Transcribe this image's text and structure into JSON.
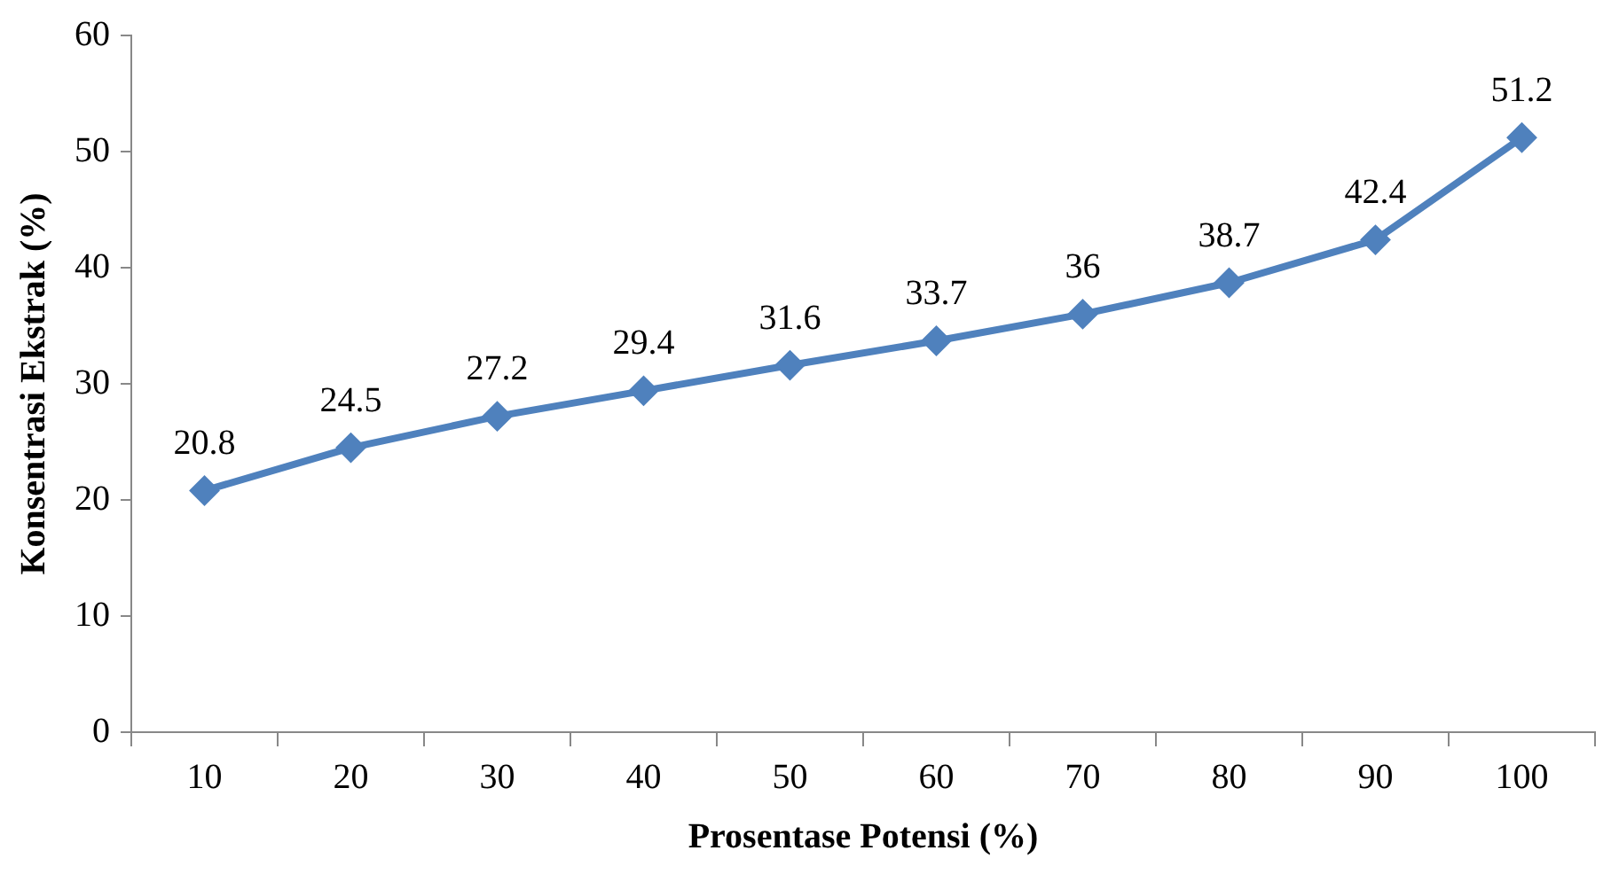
{
  "chart_data": {
    "type": "line",
    "xlabel": "Prosentase Potensi (%)",
    "ylabel": "Konsentrasi Ekstrak (%)",
    "categories": [
      "10",
      "20",
      "30",
      "40",
      "50",
      "60",
      "70",
      "80",
      "90",
      "100"
    ],
    "series": [
      {
        "color": "#4f81bd",
        "values": [
          20.8,
          24.5,
          27.2,
          29.4,
          31.6,
          33.7,
          36,
          38.7,
          42.4,
          51.2
        ]
      }
    ],
    "ylim": [
      0,
      60
    ],
    "yticks": [
      0,
      10,
      20,
      30,
      40,
      50,
      60
    ],
    "grid": false,
    "legend": false,
    "marker": "diamond",
    "line_style": "solid",
    "data_labels": true
  }
}
